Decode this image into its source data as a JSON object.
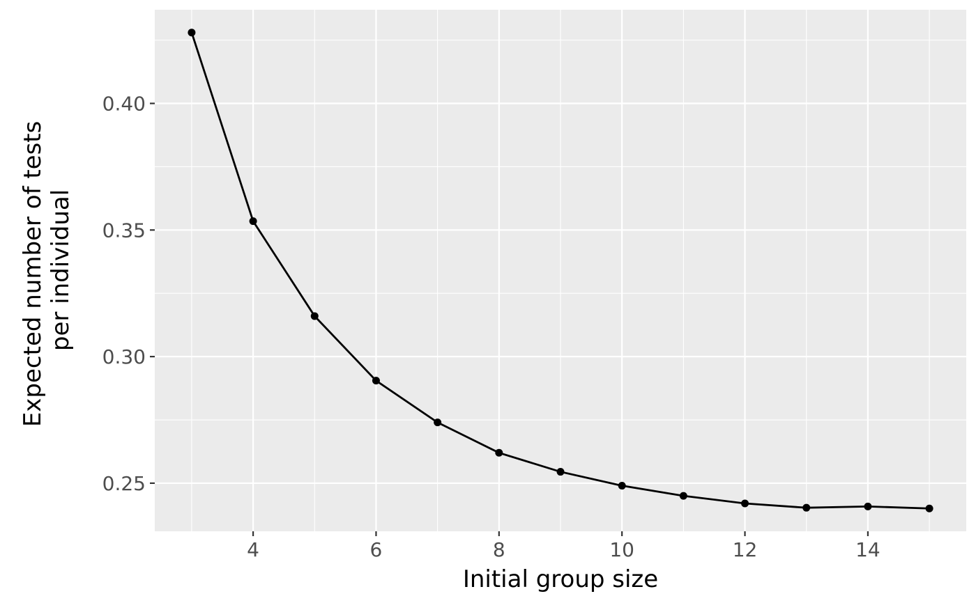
{
  "chart_data": {
    "type": "line",
    "xlabel": "Initial group size",
    "ylabel_lines": [
      "Expected number of tests",
      "per individual"
    ],
    "xlim": [
      2.4,
      15.6
    ],
    "ylim": [
      0.231,
      0.437
    ],
    "x_ticks": [
      4,
      6,
      8,
      10,
      12,
      14
    ],
    "x_tick_labels": [
      "4",
      "6",
      "8",
      "10",
      "12",
      "14"
    ],
    "x_minor_ticks": [
      3,
      5,
      7,
      9,
      11,
      13,
      15
    ],
    "y_ticks": [
      0.25,
      0.3,
      0.35,
      0.4
    ],
    "y_tick_labels": [
      "0.25",
      "0.30",
      "0.35",
      "0.40"
    ],
    "y_minor_ticks": [
      0.275,
      0.325,
      0.375,
      0.425
    ],
    "grid": true,
    "series": [
      {
        "x": [
          3,
          4,
          5,
          6,
          7,
          8,
          9,
          10,
          11,
          12,
          13,
          14,
          15
        ],
        "y": [
          0.428,
          0.3535,
          0.316,
          0.2905,
          0.274,
          0.262,
          0.2545,
          0.249,
          0.245,
          0.242,
          0.2403,
          0.2408,
          0.24
        ]
      }
    ],
    "colors": {
      "panel": "#ebebeb",
      "grid": "#ffffff",
      "line": "#000000",
      "tick_text": "#4d4d4d"
    }
  }
}
